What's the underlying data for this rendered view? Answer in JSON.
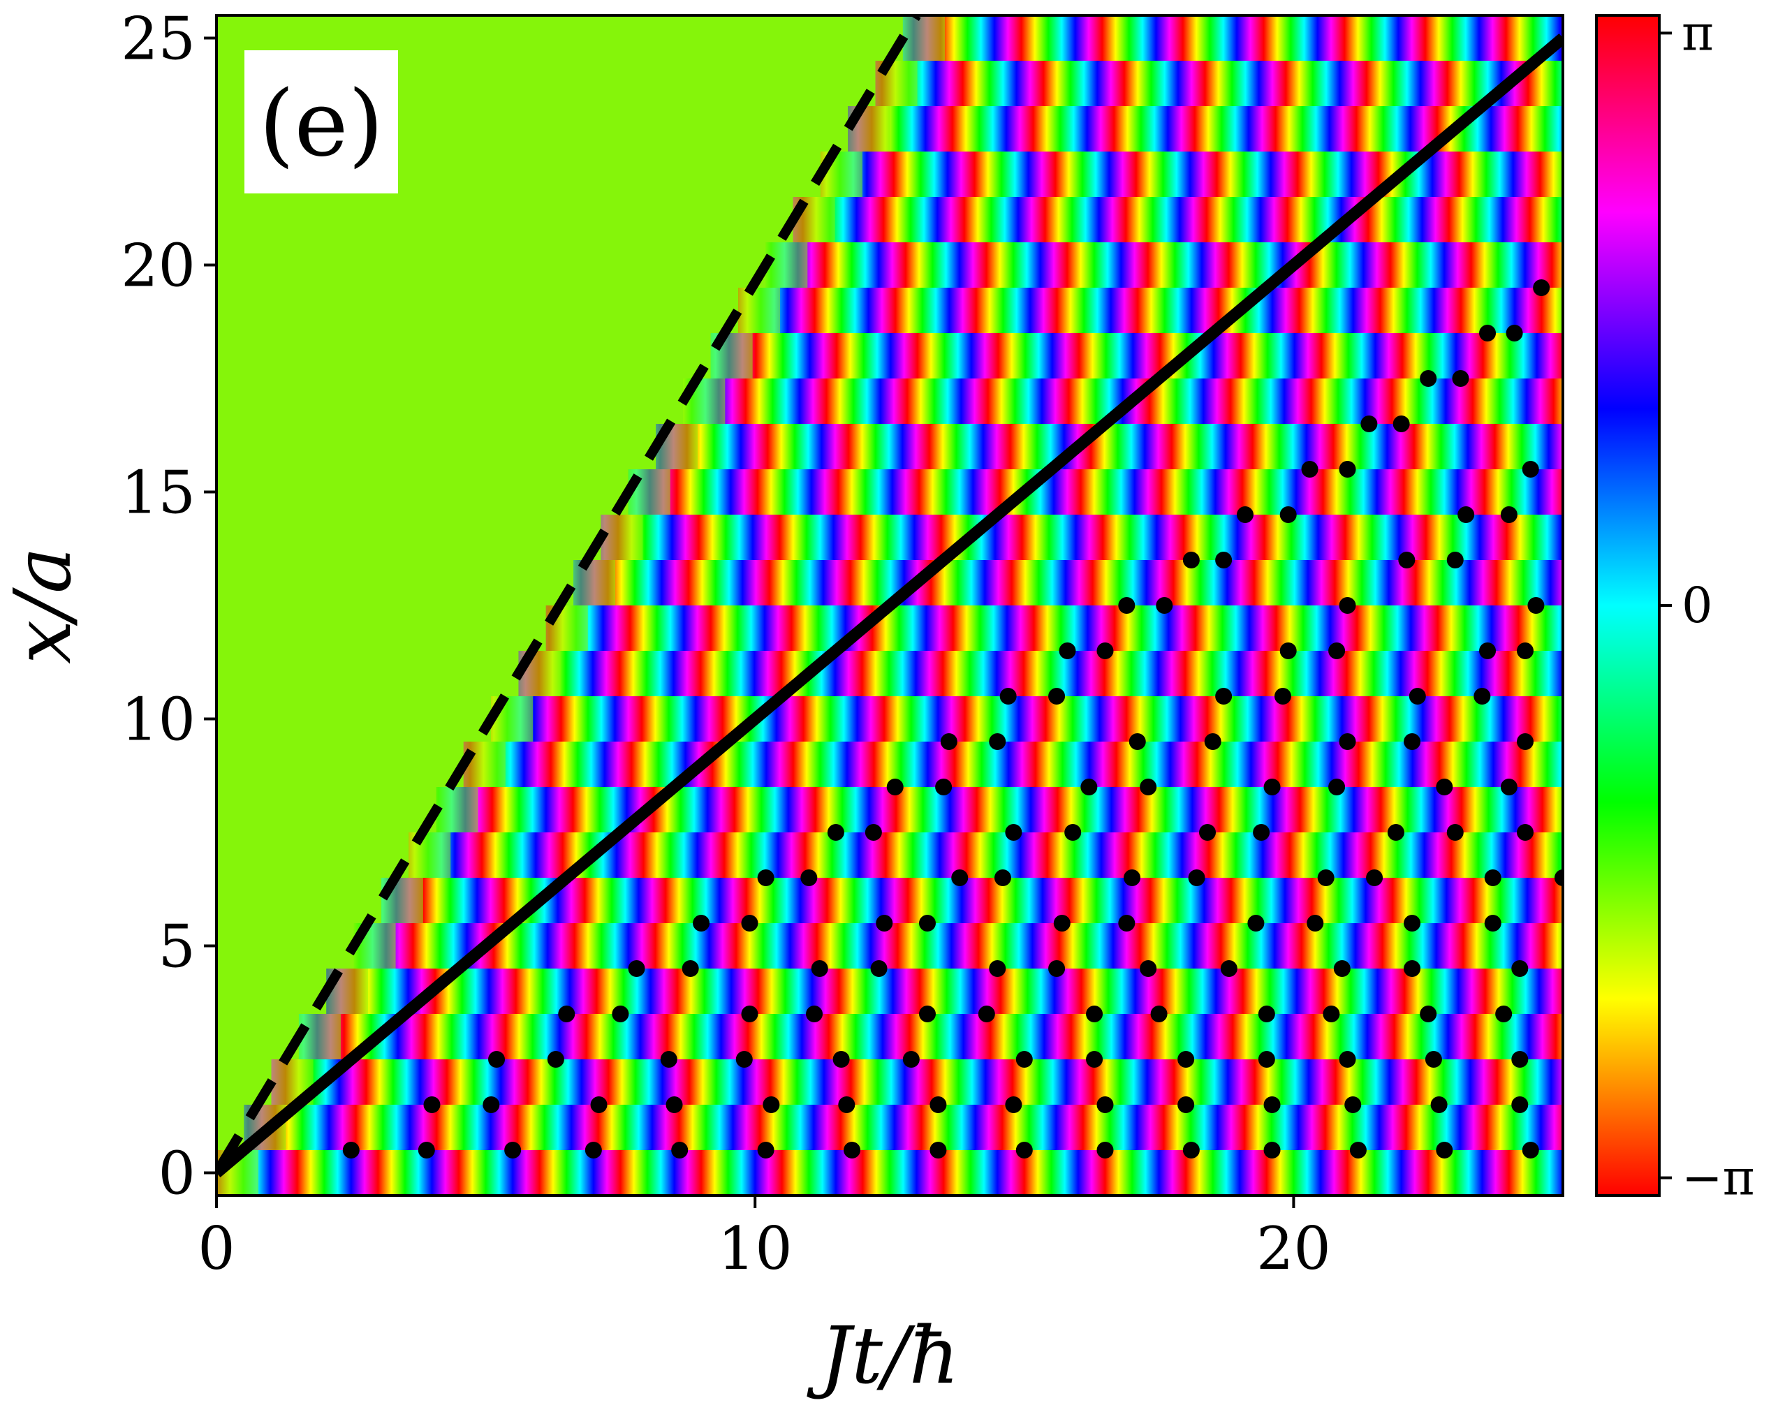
{
  "chart_data": {
    "type": "heatmap",
    "panel_label": "(e)",
    "xlabel": "Jt/ħ",
    "ylabel": "x/a",
    "xlim": [
      0,
      25
    ],
    "ylim": [
      -0.5,
      25.5
    ],
    "x_ticks": [
      0,
      10,
      20
    ],
    "x_tick_labels": [
      "0",
      "10",
      "20"
    ],
    "y_ticks": [
      0,
      5,
      10,
      15,
      20,
      25
    ],
    "y_tick_labels": [
      "0",
      "5",
      "10",
      "15",
      "20",
      "25"
    ],
    "colorbar": {
      "range": [
        -3.1416,
        3.1416
      ],
      "tick_labels": [
        "π",
        "0",
        "−π"
      ],
      "colormap": "hsv",
      "colors": [
        "#ff0000",
        "#ff8000",
        "#ffff00",
        "#80ff00",
        "#00ff00",
        "#00ff80",
        "#00ffff",
        "#0080ff",
        "#0000ff",
        "#8000ff",
        "#ff00ff",
        "#ff0080",
        "#ff0000"
      ]
    },
    "background_phase_color": "#85f50a",
    "lines": [
      {
        "style": "dashed",
        "color": "#000000",
        "x": [
          0,
          13
        ],
        "y": [
          0,
          25.5
        ]
      },
      {
        "style": "solid",
        "color": "#000000",
        "x": [
          0,
          25
        ],
        "y": [
          0,
          25
        ]
      }
    ],
    "vortex_points": [
      [
        2.5,
        0.5
      ],
      [
        3.9,
        0.5
      ],
      [
        5.5,
        0.5
      ],
      [
        7.0,
        0.5
      ],
      [
        8.6,
        0.5
      ],
      [
        10.2,
        0.5
      ],
      [
        11.8,
        0.5
      ],
      [
        13.4,
        0.5
      ],
      [
        15.0,
        0.5
      ],
      [
        16.5,
        0.5
      ],
      [
        18.1,
        0.5
      ],
      [
        19.6,
        0.5
      ],
      [
        21.2,
        0.5
      ],
      [
        22.8,
        0.5
      ],
      [
        24.4,
        0.5
      ],
      [
        4.0,
        1.5
      ],
      [
        5.1,
        1.5
      ],
      [
        7.1,
        1.5
      ],
      [
        8.5,
        1.5
      ],
      [
        10.3,
        1.5
      ],
      [
        11.7,
        1.5
      ],
      [
        13.4,
        1.5
      ],
      [
        14.8,
        1.5
      ],
      [
        16.5,
        1.5
      ],
      [
        18.0,
        1.5
      ],
      [
        19.6,
        1.5
      ],
      [
        21.1,
        1.5
      ],
      [
        22.7,
        1.5
      ],
      [
        24.2,
        1.5
      ],
      [
        5.2,
        2.5
      ],
      [
        6.3,
        2.5
      ],
      [
        8.4,
        2.5
      ],
      [
        9.8,
        2.5
      ],
      [
        11.6,
        2.5
      ],
      [
        12.9,
        2.5
      ],
      [
        15.0,
        2.5
      ],
      [
        16.3,
        2.5
      ],
      [
        18.0,
        2.5
      ],
      [
        19.5,
        2.5
      ],
      [
        21.0,
        2.5
      ],
      [
        22.6,
        2.5
      ],
      [
        24.2,
        2.5
      ],
      [
        6.5,
        3.5
      ],
      [
        7.5,
        3.5
      ],
      [
        9.9,
        3.5
      ],
      [
        11.1,
        3.5
      ],
      [
        13.2,
        3.5
      ],
      [
        14.3,
        3.5
      ],
      [
        16.3,
        3.5
      ],
      [
        17.5,
        3.5
      ],
      [
        19.5,
        3.5
      ],
      [
        20.7,
        3.5
      ],
      [
        22.5,
        3.5
      ],
      [
        23.9,
        3.5
      ],
      [
        7.8,
        4.5
      ],
      [
        8.8,
        4.5
      ],
      [
        11.2,
        4.5
      ],
      [
        12.3,
        4.5
      ],
      [
        14.5,
        4.5
      ],
      [
        15.6,
        4.5
      ],
      [
        17.3,
        4.5
      ],
      [
        18.8,
        4.5
      ],
      [
        20.9,
        4.5
      ],
      [
        22.2,
        4.5
      ],
      [
        24.2,
        4.5
      ],
      [
        9.0,
        5.5
      ],
      [
        9.9,
        5.5
      ],
      [
        12.4,
        5.5
      ],
      [
        13.2,
        5.5
      ],
      [
        15.7,
        5.5
      ],
      [
        16.9,
        5.5
      ],
      [
        19.3,
        5.5
      ],
      [
        20.4,
        5.5
      ],
      [
        22.2,
        5.5
      ],
      [
        23.7,
        5.5
      ],
      [
        10.2,
        6.5
      ],
      [
        11.0,
        6.5
      ],
      [
        13.8,
        6.5
      ],
      [
        14.6,
        6.5
      ],
      [
        17.0,
        6.5
      ],
      [
        18.2,
        6.5
      ],
      [
        20.6,
        6.5
      ],
      [
        21.5,
        6.5
      ],
      [
        23.7,
        6.5
      ],
      [
        25.0,
        6.5
      ],
      [
        11.5,
        7.5
      ],
      [
        12.2,
        7.5
      ],
      [
        14.8,
        7.5
      ],
      [
        15.9,
        7.5
      ],
      [
        18.4,
        7.5
      ],
      [
        19.4,
        7.5
      ],
      [
        21.9,
        7.5
      ],
      [
        23.0,
        7.5
      ],
      [
        24.3,
        7.5
      ],
      [
        12.6,
        8.5
      ],
      [
        13.5,
        8.5
      ],
      [
        16.2,
        8.5
      ],
      [
        17.3,
        8.5
      ],
      [
        19.6,
        8.5
      ],
      [
        20.8,
        8.5
      ],
      [
        22.8,
        8.5
      ],
      [
        24.0,
        8.5
      ],
      [
        13.6,
        9.5
      ],
      [
        14.5,
        9.5
      ],
      [
        17.1,
        9.5
      ],
      [
        18.5,
        9.5
      ],
      [
        21.0,
        9.5
      ],
      [
        22.2,
        9.5
      ],
      [
        24.3,
        9.5
      ],
      [
        14.7,
        10.5
      ],
      [
        15.6,
        10.5
      ],
      [
        18.7,
        10.5
      ],
      [
        19.8,
        10.5
      ],
      [
        22.3,
        10.5
      ],
      [
        23.5,
        10.5
      ],
      [
        15.8,
        11.5
      ],
      [
        16.5,
        11.5
      ],
      [
        19.9,
        11.5
      ],
      [
        20.8,
        11.5
      ],
      [
        23.6,
        11.5
      ],
      [
        24.3,
        11.5
      ],
      [
        16.9,
        12.5
      ],
      [
        17.6,
        12.5
      ],
      [
        21.0,
        12.5
      ],
      [
        24.5,
        12.5
      ],
      [
        18.1,
        13.5
      ],
      [
        18.7,
        13.5
      ],
      [
        22.1,
        13.5
      ],
      [
        23.0,
        13.5
      ],
      [
        19.1,
        14.5
      ],
      [
        19.9,
        14.5
      ],
      [
        23.2,
        14.5
      ],
      [
        24.0,
        14.5
      ],
      [
        20.3,
        15.5
      ],
      [
        21.0,
        15.5
      ],
      [
        24.4,
        15.5
      ],
      [
        21.4,
        16.5
      ],
      [
        22.0,
        16.5
      ],
      [
        22.5,
        17.5
      ],
      [
        23.1,
        17.5
      ],
      [
        23.6,
        18.5
      ],
      [
        24.1,
        18.5
      ],
      [
        24.6,
        19.5
      ]
    ]
  }
}
